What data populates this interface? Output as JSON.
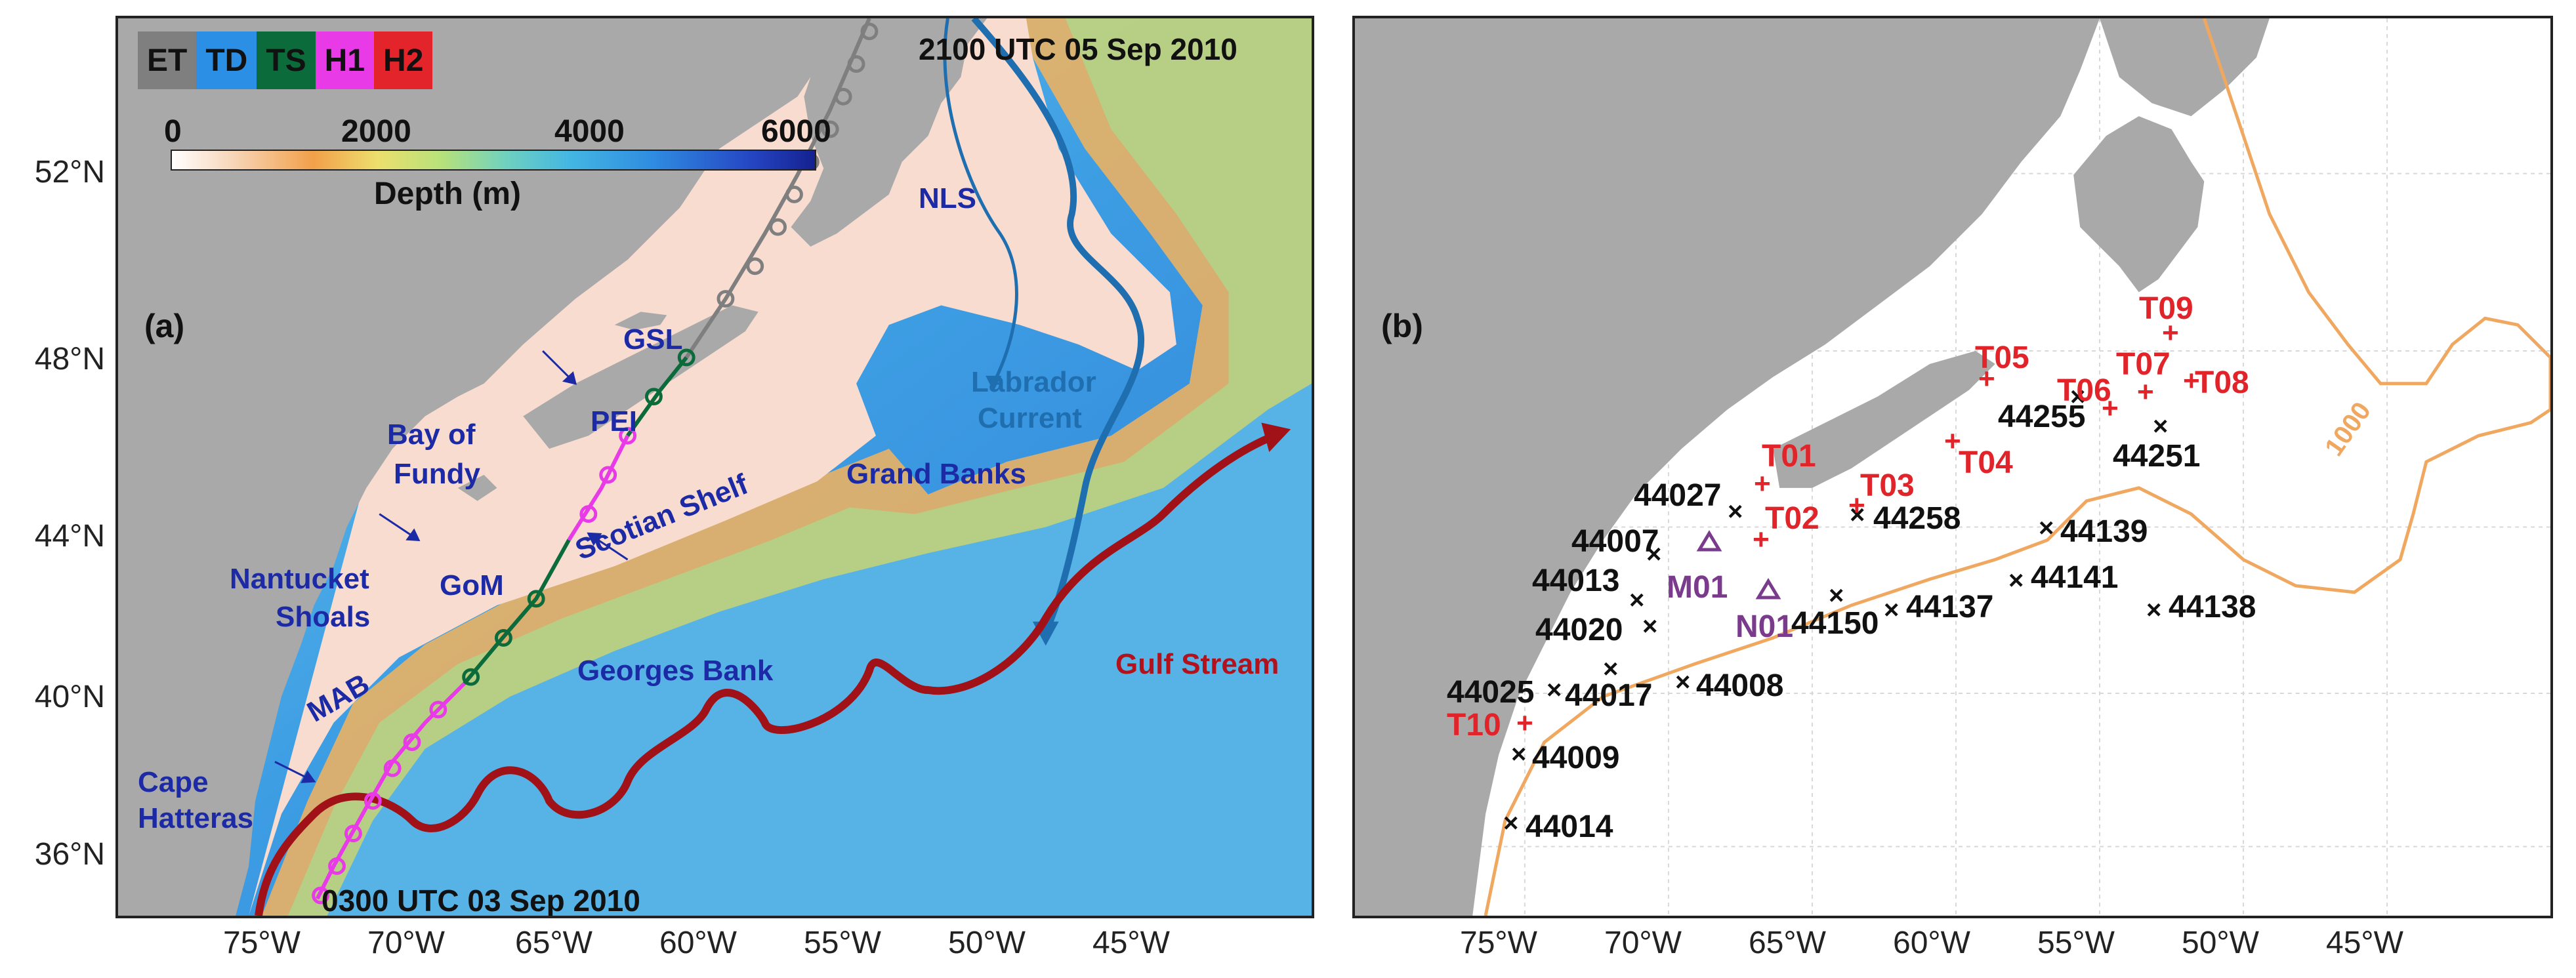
{
  "panel_a": {
    "letter": "(a)",
    "legend": [
      {
        "code": "ET",
        "color": "#7f7f7f"
      },
      {
        "code": "TD",
        "color": "#2c8fe6"
      },
      {
        "code": "TS",
        "color": "#0b6b3a"
      },
      {
        "code": "H1",
        "color": "#e83ae6"
      },
      {
        "code": "H2",
        "color": "#e3242b"
      }
    ],
    "colorbar": {
      "ticks": [
        "0",
        "2000",
        "4000",
        "6000"
      ],
      "label": "Depth (m)"
    },
    "time_end": "2100 UTC 05 Sep 2010",
    "time_start": "0300 UTC 03 Sep 2010",
    "features": {
      "nls": "NLS",
      "labrador1": "Labrador",
      "labrador2": "Current",
      "gsl": "GSL",
      "pei": "PEI",
      "bay1": "Bay of",
      "bay2": "Fundy",
      "grand_banks": "Grand Banks",
      "scotian_shelf": "Scotian Shelf",
      "gom": "GoM",
      "nantucket1": "Nantucket",
      "nantucket2": "Shoals",
      "mab": "MAB",
      "georges_bank": "Georges Bank",
      "gulf_stream": "Gulf Stream",
      "hatteras1": "Cape",
      "hatteras2": "Hatteras"
    }
  },
  "panel_b": {
    "letter": "(b)",
    "isobath_label": "1000",
    "colors": {
      "buoy": "#111111",
      "tide": "#e0242a",
      "mooring": "#7a3b8c",
      "isobath": "#f0a860"
    },
    "stations": {
      "s44027": "44027",
      "s44007": "44007",
      "s44013": "44013",
      "s44020": "44020",
      "s44025": "44025",
      "s44017": "44017",
      "s44008": "44008",
      "s44009": "44009",
      "s44014": "44014",
      "s44258": "44258",
      "s44150": "44150",
      "s44137": "44137",
      "s44141": "44141",
      "s44139": "44139",
      "s44138": "44138",
      "s44255": "44255",
      "s44251": "44251"
    },
    "tide_gauges": {
      "t01": "T01",
      "t02": "T02",
      "t03": "T03",
      "t04": "T04",
      "t05": "T05",
      "t06": "T06",
      "t07": "T07",
      "t08": "T08",
      "t09": "T09",
      "t10": "T10"
    },
    "moorings": {
      "m01": "M01",
      "n01": "N01"
    }
  },
  "axes": {
    "y_labels": [
      "52°N",
      "48°N",
      "44°N",
      "40°N",
      "36°N"
    ],
    "x_labels_a": [
      "75°W",
      "70°W",
      "65°W",
      "60°W",
      "55°W",
      "50°W",
      "45°W"
    ],
    "x_labels_b": [
      "75°W",
      "70°W",
      "65°W",
      "60°W",
      "55°W",
      "50°W",
      "45°W"
    ]
  }
}
